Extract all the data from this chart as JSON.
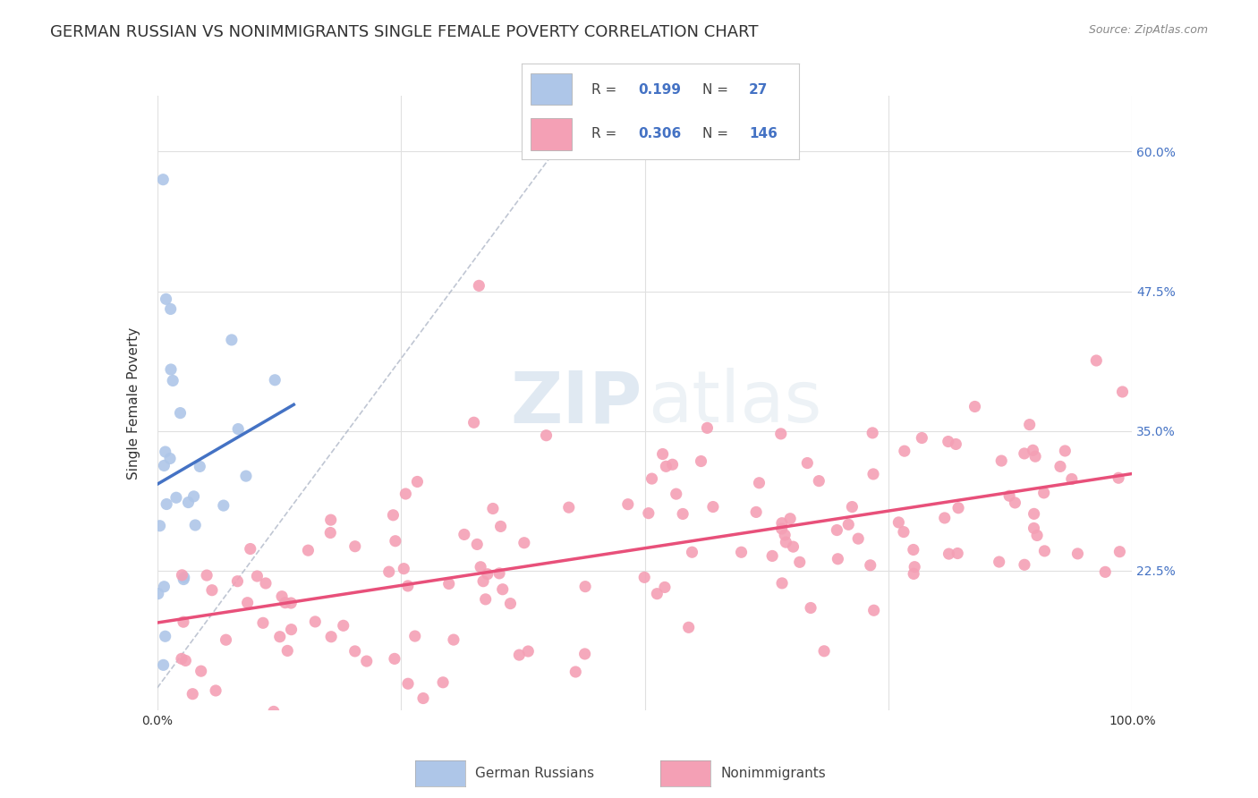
{
  "title": "GERMAN RUSSIAN VS NONIMMIGRANTS SINGLE FEMALE POVERTY CORRELATION CHART",
  "source": "Source: ZipAtlas.com",
  "ylabel": "Single Female Poverty",
  "x_tick_labels": [
    "0.0%",
    "",
    "",
    "",
    "100.0%"
  ],
  "y_tick_labels": [
    "22.5%",
    "35.0%",
    "47.5%",
    "60.0%"
  ],
  "y_tick_values": [
    0.225,
    0.35,
    0.475,
    0.6
  ],
  "legend_R1": "0.199",
  "legend_N1": "27",
  "legend_R2": "0.306",
  "legend_N2": "146",
  "legend_label1": "German Russians",
  "legend_label2": "Nonimmigrants",
  "blue_line_color": "#4472c4",
  "pink_line_color": "#e8507a",
  "blue_scatter_color": "#aec6e8",
  "pink_scatter_color": "#f4a0b5",
  "dashed_line_color": "#b0b8c8",
  "background_color": "#ffffff",
  "grid_color": "#e0e0e0",
  "title_fontsize": 13,
  "axis_label_fontsize": 11,
  "tick_fontsize": 10,
  "watermark_zip": "ZIP",
  "watermark_atlas": "atlas",
  "xlim": [
    0.0,
    1.0
  ],
  "ylim": [
    0.1,
    0.65
  ]
}
